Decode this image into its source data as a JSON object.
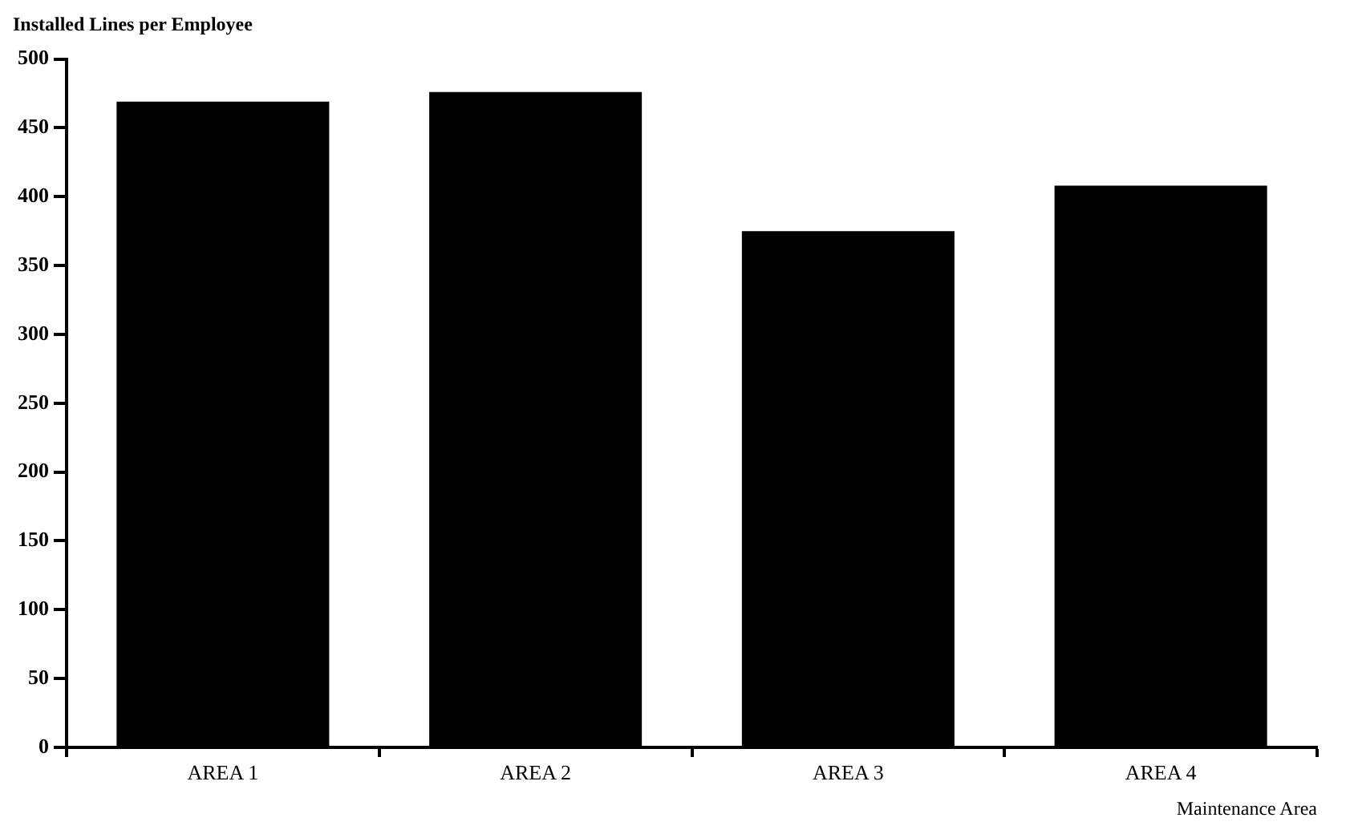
{
  "chart_data": {
    "type": "bar",
    "ylabel": "Installed Lines per Employee",
    "xlabel": "Maintenance Area",
    "categories": [
      "AREA 1",
      "AREA 2",
      "AREA 3",
      "AREA 4"
    ],
    "values": [
      469,
      476,
      375,
      408
    ],
    "color": "#000000",
    "ylim": [
      0,
      500
    ],
    "yticks": [
      0,
      50,
      100,
      150,
      200,
      250,
      300,
      350,
      400,
      450,
      500
    ],
    "grid": false,
    "legend": false
  }
}
